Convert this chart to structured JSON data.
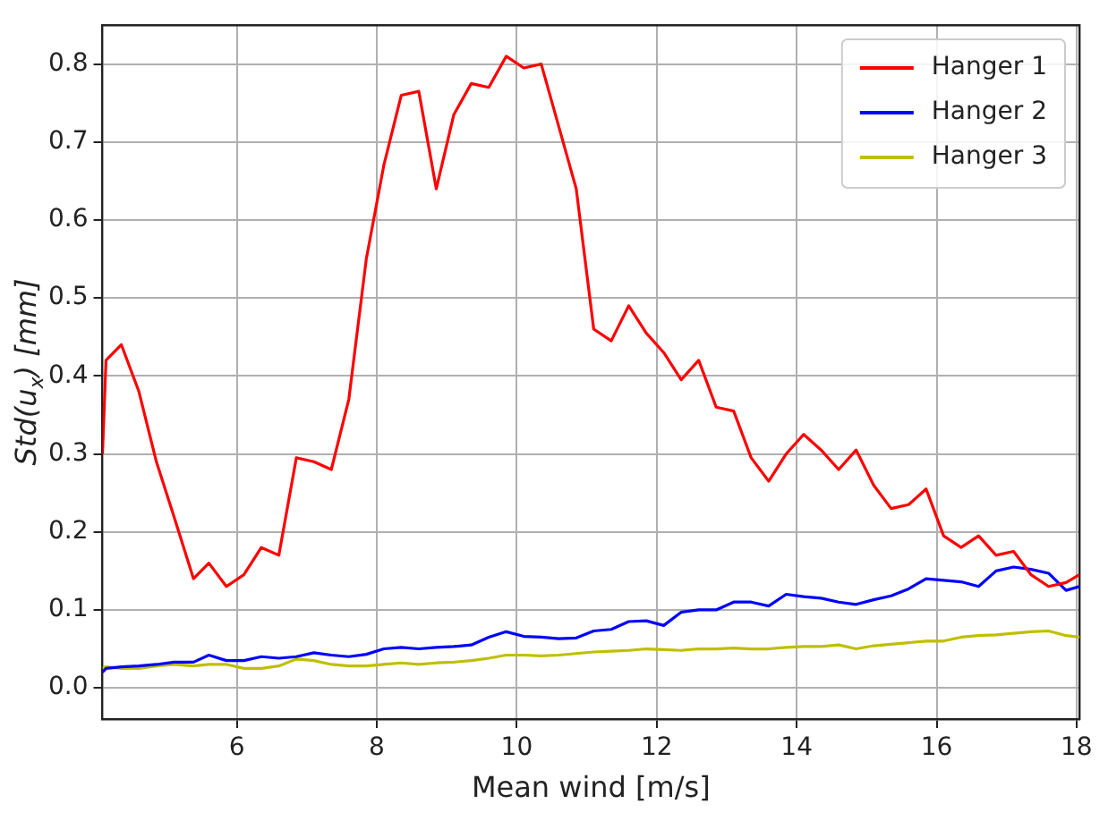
{
  "chart_data": {
    "type": "line",
    "xlabel": "Mean wind [m/s]",
    "ylabel": "Std(u$_{x}$) [mm]",
    "x": [
      4.08,
      4.13,
      4.35,
      4.6,
      4.85,
      5.1,
      5.38,
      5.6,
      5.85,
      6.1,
      6.35,
      6.6,
      6.85,
      7.1,
      7.35,
      7.6,
      7.85,
      8.1,
      8.35,
      8.6,
      8.85,
      9.1,
      9.35,
      9.6,
      9.85,
      10.1,
      10.35,
      10.6,
      10.85,
      11.1,
      11.35,
      11.6,
      11.85,
      12.1,
      12.35,
      12.6,
      12.85,
      13.1,
      13.35,
      13.6,
      13.85,
      14.1,
      14.35,
      14.6,
      14.85,
      15.1,
      15.35,
      15.6,
      15.85,
      16.1,
      16.35,
      16.6,
      16.85,
      17.1,
      17.35,
      17.6,
      17.85,
      18.04
    ],
    "series": [
      {
        "name": "Hanger 1",
        "color": "#ff0000",
        "values": [
          0.3,
          0.42,
          0.44,
          0.38,
          0.29,
          0.22,
          0.14,
          0.16,
          0.13,
          0.145,
          0.18,
          0.17,
          0.295,
          0.29,
          0.28,
          0.37,
          0.55,
          0.67,
          0.76,
          0.765,
          0.64,
          0.735,
          0.775,
          0.77,
          0.81,
          0.795,
          0.8,
          0.72,
          0.64,
          0.46,
          0.445,
          0.49,
          0.455,
          0.43,
          0.395,
          0.42,
          0.36,
          0.355,
          0.295,
          0.265,
          0.3,
          0.325,
          0.305,
          0.28,
          0.305,
          0.26,
          0.23,
          0.235,
          0.255,
          0.195,
          0.18,
          0.195,
          0.17,
          0.175,
          0.145,
          0.13,
          0.135,
          0.145
        ]
      },
      {
        "name": "Hanger 2",
        "color": "#0000ff",
        "values": [
          0.02,
          0.025,
          0.027,
          0.028,
          0.03,
          0.033,
          0.033,
          0.042,
          0.035,
          0.035,
          0.04,
          0.038,
          0.04,
          0.045,
          0.042,
          0.04,
          0.043,
          0.05,
          0.052,
          0.05,
          0.052,
          0.053,
          0.055,
          0.065,
          0.072,
          0.066,
          0.065,
          0.063,
          0.064,
          0.073,
          0.075,
          0.085,
          0.086,
          0.08,
          0.097,
          0.1,
          0.1,
          0.11,
          0.11,
          0.105,
          0.12,
          0.117,
          0.115,
          0.11,
          0.107,
          0.113,
          0.118,
          0.127,
          0.14,
          0.138,
          0.136,
          0.13,
          0.15,
          0.155,
          0.152,
          0.147,
          0.125,
          0.13
        ]
      },
      {
        "name": "Hanger 3",
        "color": "#bfbf00",
        "values": [
          0.025,
          0.027,
          0.025,
          0.025,
          0.028,
          0.03,
          0.028,
          0.03,
          0.03,
          0.025,
          0.025,
          0.028,
          0.037,
          0.035,
          0.03,
          0.028,
          0.028,
          0.03,
          0.032,
          0.03,
          0.032,
          0.033,
          0.035,
          0.038,
          0.042,
          0.042,
          0.041,
          0.042,
          0.044,
          0.046,
          0.047,
          0.048,
          0.05,
          0.049,
          0.048,
          0.05,
          0.05,
          0.051,
          0.05,
          0.05,
          0.052,
          0.053,
          0.053,
          0.055,
          0.05,
          0.054,
          0.056,
          0.058,
          0.06,
          0.06,
          0.065,
          0.067,
          0.068,
          0.07,
          0.072,
          0.073,
          0.067,
          0.065
        ]
      }
    ],
    "xlim": [
      4.08,
      18.04
    ],
    "xticks": [
      6,
      8,
      10,
      12,
      14,
      16,
      18
    ],
    "ylim": [
      -0.04,
      0.85
    ],
    "yticks": [
      {
        "value": 0,
        "label": "0.0"
      },
      {
        "value": 0.1,
        "label": "0.1"
      },
      {
        "value": 0.2,
        "label": "0.2"
      },
      {
        "value": 0.3,
        "label": "0.3"
      },
      {
        "value": 0.4,
        "label": "0.4"
      },
      {
        "value": 0.5,
        "label": "0.5"
      },
      {
        "value": 0.6,
        "label": "0.6"
      },
      {
        "value": 0.7,
        "label": "0.7"
      },
      {
        "value": 0.8,
        "label": "0.8"
      }
    ],
    "grid": true,
    "legend": "top right",
    "marker": "none",
    "line_style": "solid"
  }
}
